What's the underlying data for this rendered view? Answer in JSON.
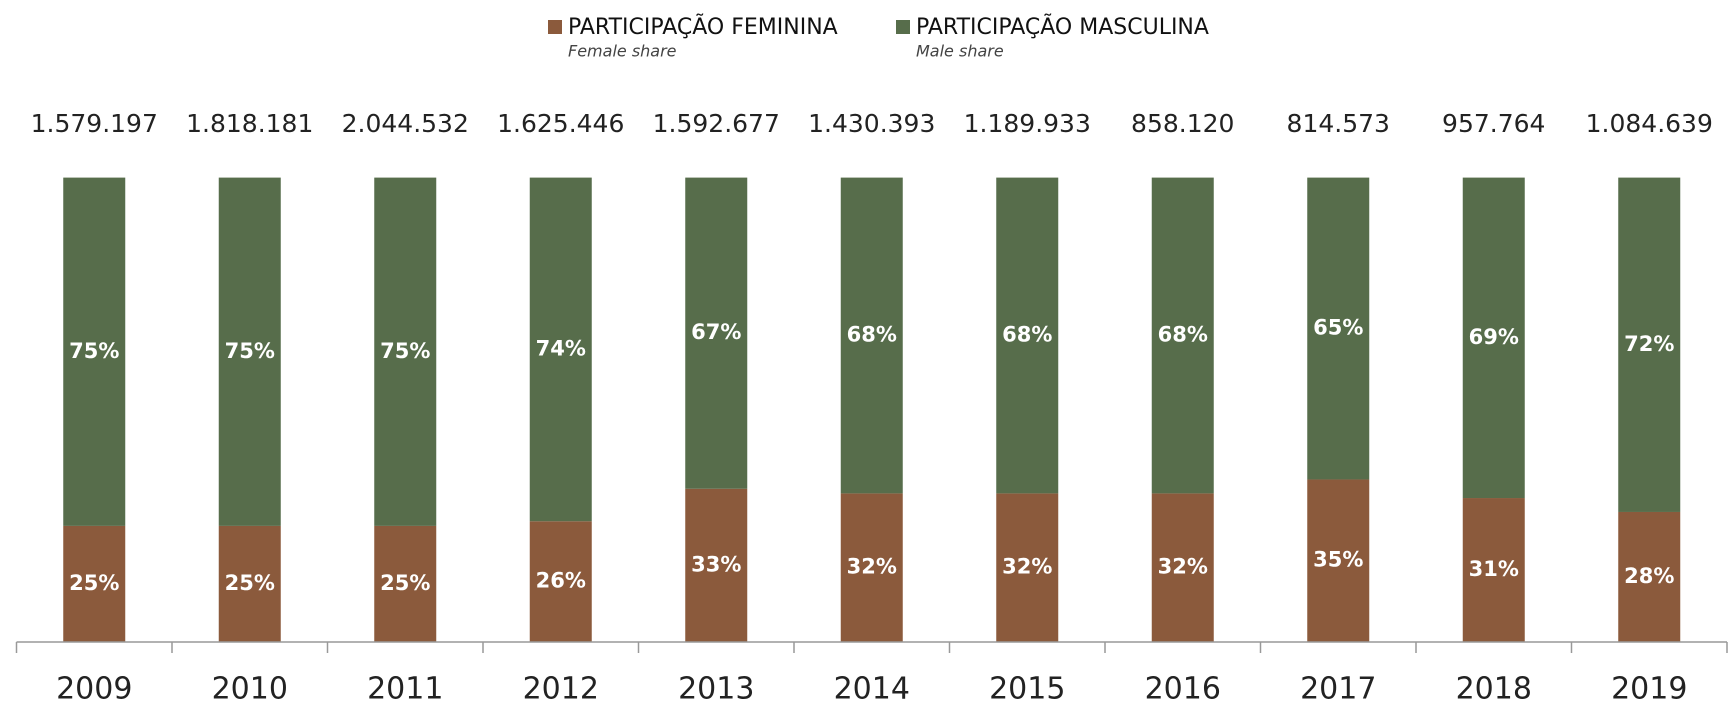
{
  "chart_data": {
    "type": "stacked_bar_100",
    "categories": [
      "2009",
      "2010",
      "2011",
      "2012",
      "2013",
      "2014",
      "2015",
      "2016",
      "2017",
      "2018",
      "2019"
    ],
    "series": [
      {
        "name": "PARTICIPAÇÃO FEMININA",
        "legend_subtitle": "Female share",
        "color": "#8b5a3c",
        "values": [
          25,
          25,
          25,
          26,
          33,
          32,
          32,
          32,
          35,
          31,
          28
        ],
        "value_labels": [
          "25%",
          "25%",
          "25%",
          "26%",
          "33%",
          "32%",
          "32%",
          "32%",
          "35%",
          "31%",
          "28%"
        ]
      },
      {
        "name": "PARTICIPAÇÃO MASCULINA",
        "legend_subtitle": "Male share",
        "color": "#576d4b",
        "values": [
          75,
          75,
          75,
          74,
          67,
          68,
          68,
          68,
          65,
          69,
          72
        ],
        "value_labels": [
          "75%",
          "75%",
          "75%",
          "74%",
          "67%",
          "68%",
          "68%",
          "68%",
          "65%",
          "69%",
          "72%"
        ]
      }
    ],
    "totals": {
      "values": [
        1579197,
        1818181,
        2044532,
        1625446,
        1592677,
        1430393,
        1189933,
        858120,
        814573,
        957764,
        1084639
      ],
      "value_labels": [
        "1.579.197",
        "1.818.181",
        "2.044.532",
        "1.625.446",
        "1.592.677",
        "1.430.393",
        "1.189.933",
        "858.120",
        "814.573",
        "957.764",
        "1.084.639"
      ]
    },
    "ylim": [
      0,
      100
    ],
    "legend": "top",
    "grid": false
  }
}
